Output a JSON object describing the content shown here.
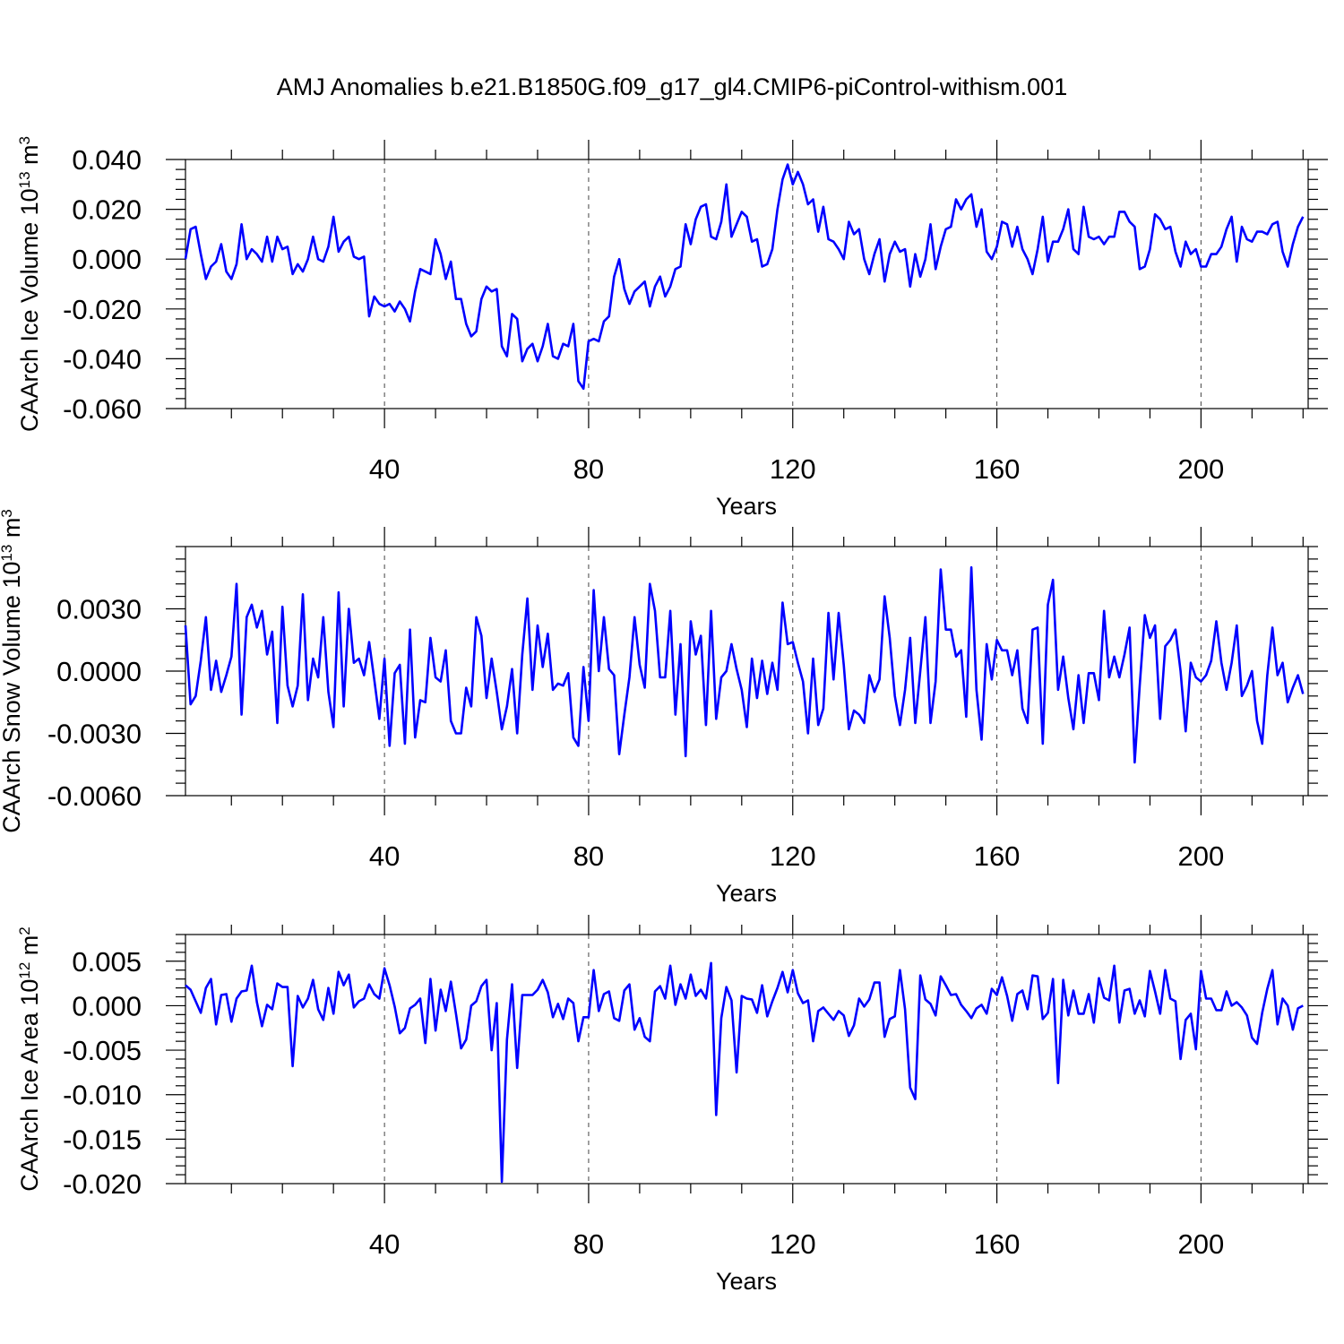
{
  "chart_title": "AMJ Anomalies b.e21.B1850G.f09_g17_gl4.CMIP6-piControl-withism.001",
  "chart_data": [
    {
      "type": "line",
      "xlabel": "Years",
      "ylabel_text": "CAArch Ice Volume 10",
      "ylabel_exp": "13",
      "ylabel_unit": " m",
      "ylabel_unit_exp": "3",
      "xlim": [
        1,
        221
      ],
      "ylim": [
        -0.06,
        0.04
      ],
      "xticks": [
        40,
        80,
        120,
        160,
        200
      ],
      "xtick_labels": [
        "40",
        "80",
        "120",
        "160",
        "200"
      ],
      "yticks": [
        -0.06,
        -0.04,
        -0.02,
        0.0,
        0.02,
        0.04
      ],
      "ytick_labels": [
        "-0.060",
        "-0.040",
        "-0.020",
        "0.000",
        "0.020",
        "0.040"
      ],
      "grid": "dashed vertical at major x ticks",
      "series": [
        {
          "color": "#0000ff",
          "values": [
            0.0,
            0.012,
            0.013,
            0.002,
            -0.008,
            -0.003,
            -0.001,
            0.006,
            -0.005,
            -0.008,
            -0.002,
            0.014,
            0.0,
            0.004,
            0.002,
            -0.001,
            0.009,
            -0.001,
            0.009,
            0.004,
            0.005,
            -0.006,
            -0.002,
            -0.005,
            0.0,
            0.009,
            0.0,
            -0.001,
            0.005,
            0.017,
            0.003,
            0.007,
            0.009,
            0.001,
            0.0,
            0.001,
            -0.023,
            -0.015,
            -0.018,
            -0.019,
            -0.018,
            -0.021,
            -0.017,
            -0.02,
            -0.025,
            -0.013,
            -0.004,
            -0.005,
            -0.006,
            0.008,
            0.002,
            -0.008,
            -0.001,
            -0.016,
            -0.016,
            -0.026,
            -0.031,
            -0.029,
            -0.016,
            -0.011,
            -0.013,
            -0.012,
            -0.035,
            -0.039,
            -0.022,
            -0.024,
            -0.041,
            -0.036,
            -0.034,
            -0.041,
            -0.035,
            -0.026,
            -0.039,
            -0.04,
            -0.034,
            -0.035,
            -0.026,
            -0.049,
            -0.052,
            -0.033,
            -0.032,
            -0.033,
            -0.025,
            -0.023,
            -0.007,
            0.0,
            -0.012,
            -0.018,
            -0.013,
            -0.011,
            -0.009,
            -0.019,
            -0.011,
            -0.007,
            -0.015,
            -0.011,
            -0.004,
            -0.003,
            0.014,
            0.006,
            0.016,
            0.021,
            0.022,
            0.009,
            0.008,
            0.015,
            0.03,
            0.009,
            0.014,
            0.019,
            0.017,
            0.007,
            0.008,
            -0.003,
            -0.002,
            0.004,
            0.02,
            0.032,
            0.038,
            0.03,
            0.035,
            0.03,
            0.022,
            0.024,
            0.011,
            0.021,
            0.008,
            0.007,
            0.004,
            0.0,
            0.015,
            0.01,
            0.012,
            0.0,
            -0.006,
            0.002,
            0.008,
            -0.009,
            0.002,
            0.007,
            0.003,
            0.004,
            -0.011,
            0.002,
            -0.007,
            0.0,
            0.014,
            -0.004,
            0.005,
            0.012,
            0.013,
            0.024,
            0.02,
            0.024,
            0.026,
            0.013,
            0.02,
            0.003,
            0.0,
            0.005,
            0.015,
            0.014,
            0.005,
            0.013,
            0.004,
            0.0,
            -0.006,
            0.004,
            0.017,
            -0.001,
            0.007,
            0.007,
            0.012,
            0.02,
            0.004,
            0.002,
            0.021,
            0.009,
            0.008,
            0.009,
            0.006,
            0.009,
            0.009,
            0.019,
            0.019,
            0.015,
            0.013,
            -0.004,
            -0.003,
            0.004,
            0.018,
            0.016,
            0.012,
            0.013,
            0.003,
            -0.003,
            0.007,
            0.002,
            0.004,
            -0.003,
            -0.003,
            0.002,
            0.002,
            0.005,
            0.012,
            0.017,
            -0.001,
            0.013,
            0.008,
            0.007,
            0.011,
            0.011,
            0.01,
            0.014,
            0.015,
            0.003,
            -0.003,
            0.006,
            0.013,
            0.017
          ]
        }
      ]
    },
    {
      "type": "line",
      "xlabel": "Years",
      "ylabel_text": "CAArch Snow Volume 10",
      "ylabel_exp": "13",
      "ylabel_unit": " m",
      "ylabel_unit_exp": "3",
      "xlim": [
        1,
        221
      ],
      "ylim": [
        -0.006,
        0.006
      ],
      "xticks": [
        40,
        80,
        120,
        160,
        200
      ],
      "xtick_labels": [
        "40",
        "80",
        "120",
        "160",
        "200"
      ],
      "yticks": [
        -0.006,
        -0.003,
        0.0,
        0.003
      ],
      "ytick_labels": [
        "-0.0060",
        "-0.0030",
        "0.0000",
        "0.0030"
      ],
      "grid": "dashed vertical at major x ticks",
      "series": [
        {
          "color": "#0000ff",
          "values": [
            0.0022,
            -0.0016,
            -0.0012,
            0.0005,
            0.0026,
            -0.0009,
            0.0005,
            -0.001,
            -0.0002,
            0.0007,
            0.0042,
            -0.0021,
            0.0026,
            0.0032,
            0.0021,
            0.0029,
            0.0008,
            0.0019,
            -0.0025,
            0.0031,
            -0.0007,
            -0.0017,
            -0.0007,
            0.0037,
            -0.0014,
            0.0006,
            -0.0003,
            0.0026,
            -0.001,
            -0.0027,
            0.0038,
            -0.0017,
            0.003,
            0.0004,
            0.0006,
            -0.0002,
            0.0014,
            -0.0004,
            -0.0023,
            0.0006,
            -0.0036,
            -0.0001,
            0.0003,
            -0.0035,
            0.002,
            -0.0032,
            -0.0014,
            -0.0015,
            0.0016,
            -0.0003,
            -0.0005,
            0.001,
            -0.0024,
            -0.003,
            -0.003,
            -0.0008,
            -0.0017,
            0.0026,
            0.0017,
            -0.0013,
            0.0006,
            -0.001,
            -0.0028,
            -0.0017,
            0.0001,
            -0.003,
            0.0008,
            0.0035,
            -0.0009,
            0.0022,
            0.0002,
            0.0018,
            -0.0009,
            -0.0006,
            -0.0007,
            -0.0001,
            -0.0032,
            -0.0036,
            0.0002,
            -0.0024,
            0.0039,
            0.0,
            0.0026,
            0.0001,
            -0.0002,
            -0.004,
            -0.0021,
            -0.0003,
            0.0026,
            0.0003,
            -0.0008,
            0.0042,
            0.0029,
            -0.0003,
            -0.0003,
            0.0029,
            -0.0021,
            0.0013,
            -0.0041,
            0.0024,
            0.0008,
            0.0017,
            -0.0026,
            0.0029,
            -0.0023,
            -0.0003,
            0.0,
            0.0013,
            0.0001,
            -0.0009,
            -0.0027,
            0.0006,
            -0.0013,
            0.0005,
            -0.0011,
            0.0004,
            -0.0009,
            0.0033,
            0.0013,
            0.0014,
            0.0004,
            -0.0005,
            -0.003,
            0.0006,
            -0.0026,
            -0.0018,
            0.0028,
            -0.0004,
            0.0028,
            0.0003,
            -0.0028,
            -0.0019,
            -0.0021,
            -0.0025,
            -0.0002,
            -0.001,
            -0.0004,
            0.0036,
            0.0016,
            -0.0012,
            -0.0026,
            -0.0009,
            0.0016,
            -0.0025,
            0.0,
            0.0026,
            -0.0025,
            -0.0005,
            0.0049,
            0.002,
            0.002,
            0.0007,
            0.001,
            -0.0022,
            0.005,
            -0.0009,
            -0.0033,
            0.0013,
            -0.0004,
            0.0015,
            0.001,
            0.001,
            -0.0002,
            0.001,
            -0.0018,
            -0.0025,
            0.002,
            0.0021,
            -0.0035,
            0.0032,
            0.0044,
            -0.0009,
            0.0007,
            -0.0013,
            -0.0028,
            -0.0002,
            -0.0025,
            -0.0001,
            -0.0001,
            -0.0014,
            0.0029,
            -0.0003,
            0.0007,
            -0.0003,
            0.0008,
            0.0021,
            -0.0044,
            -0.0007,
            0.0027,
            0.0016,
            0.0022,
            -0.0023,
            0.0012,
            0.0015,
            0.002,
            0.0,
            -0.0029,
            0.0004,
            -0.0003,
            -0.0005,
            -0.0002,
            0.0005,
            0.0024,
            0.0004,
            -0.0009,
            0.0004,
            0.0022,
            -0.0012,
            -0.0007,
            0.0,
            -0.0024,
            -0.0035,
            -0.0002,
            0.0021,
            -0.0002,
            0.0004,
            -0.0015,
            -0.0008,
            -0.0002,
            -0.0011
          ]
        }
      ]
    },
    {
      "type": "line",
      "xlabel": "Years",
      "ylabel_text": "CAArch Ice Area 10",
      "ylabel_exp": "12",
      "ylabel_unit": " m",
      "ylabel_unit_exp": "2",
      "xlim": [
        1,
        221
      ],
      "ylim": [
        -0.02,
        0.008
      ],
      "xticks": [
        40,
        80,
        120,
        160,
        200
      ],
      "xtick_labels": [
        "40",
        "80",
        "120",
        "160",
        "200"
      ],
      "yticks": [
        -0.02,
        -0.015,
        -0.01,
        -0.005,
        0.0,
        0.005
      ],
      "ytick_labels": [
        "-0.020",
        "-0.015",
        "-0.010",
        "-0.005",
        "0.000",
        "0.005"
      ],
      "grid": "dashed vertical at major x ticks",
      "series": [
        {
          "color": "#0000ff",
          "values": [
            0.0023,
            0.0018,
            0.0005,
            -0.0008,
            0.002,
            0.003,
            -0.0021,
            0.0012,
            0.0013,
            -0.0018,
            0.0008,
            0.0016,
            0.0017,
            0.0045,
            0.0004,
            -0.0023,
            0.0001,
            -0.0004,
            0.0025,
            0.0021,
            0.0021,
            -0.0068,
            0.0011,
            -0.0002,
            0.0008,
            0.0029,
            -0.0004,
            -0.0016,
            0.002,
            -0.0009,
            0.0038,
            0.0023,
            0.0035,
            -0.0002,
            0.0005,
            0.0008,
            0.0024,
            0.0013,
            0.0008,
            0.0042,
            0.0023,
            -0.0001,
            -0.0031,
            -0.0025,
            -0.0003,
            0.0001,
            0.0008,
            -0.0042,
            0.003,
            -0.0028,
            0.0018,
            -0.0006,
            0.0027,
            -0.0009,
            -0.0048,
            -0.0038,
            0.0,
            0.0005,
            0.0022,
            0.0029,
            -0.005,
            0.0003,
            -0.0198,
            -0.0038,
            0.0024,
            -0.007,
            0.0012,
            0.0012,
            0.0012,
            0.0018,
            0.0029,
            0.0015,
            -0.0013,
            0.0002,
            -0.0015,
            0.0008,
            0.0003,
            -0.004,
            -0.0013,
            -0.0013,
            0.004,
            -0.0006,
            0.0013,
            0.0016,
            -0.0014,
            -0.0017,
            0.0017,
            0.0024,
            -0.0027,
            -0.0014,
            -0.0035,
            -0.004,
            0.0016,
            0.0022,
            0.0008,
            0.0045,
            0.0001,
            0.0024,
            0.0008,
            0.0035,
            0.0011,
            0.0018,
            0.0008,
            0.0048,
            -0.0123,
            -0.0014,
            0.0021,
            0.0006,
            -0.0075,
            0.0011,
            0.0008,
            0.0007,
            -0.0008,
            0.0023,
            -0.0012,
            0.0005,
            0.002,
            0.0038,
            0.0015,
            0.004,
            0.0014,
            0.0003,
            0.0006,
            -0.004,
            -0.0006,
            -0.0002,
            -0.0009,
            -0.0016,
            -0.0006,
            -0.0011,
            -0.0034,
            -0.0022,
            0.0008,
            -0.0001,
            0.0007,
            0.0026,
            0.0026,
            -0.0035,
            -0.0015,
            -0.0012,
            0.004,
            -0.0004,
            -0.0092,
            -0.0105,
            0.0034,
            0.0007,
            0.0002,
            -0.0011,
            0.0033,
            0.0023,
            0.0012,
            0.0013,
            0.0001,
            -0.0006,
            -0.0014,
            -0.0003,
            0.0001,
            -0.0009,
            0.0019,
            0.0012,
            0.0032,
            0.0011,
            -0.0017,
            0.0013,
            0.0017,
            -0.0004,
            0.0034,
            0.0033,
            -0.0015,
            -0.0008,
            0.003,
            -0.0087,
            0.0029,
            -0.0011,
            0.0017,
            -0.0009,
            -0.0009,
            0.0013,
            -0.0019,
            0.0031,
            0.0009,
            0.0006,
            0.0045,
            -0.0019,
            0.0017,
            0.0019,
            -0.0009,
            0.0006,
            -0.0012,
            0.0039,
            0.0016,
            -0.0009,
            0.004,
            0.0008,
            0.0005,
            -0.006,
            -0.0016,
            -0.0009,
            -0.0049,
            0.0039,
            0.0008,
            0.0008,
            -0.0005,
            -0.0005,
            0.0016,
            0.0,
            0.0004,
            -0.0002,
            -0.0011,
            -0.0036,
            -0.0043,
            -0.0008,
            0.0019,
            0.004,
            -0.0021,
            0.0008,
            0.0,
            -0.0027,
            -0.0003,
            0.0
          ]
        }
      ]
    }
  ]
}
